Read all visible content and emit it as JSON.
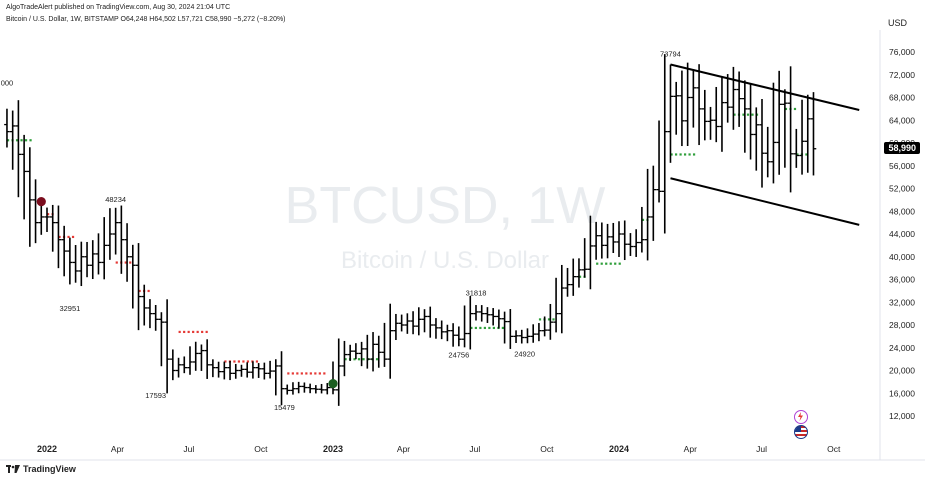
{
  "header": {
    "publisher_line": "AlgoTradeAlert published on TradingView.com, Aug 30, 2024 21:04 UTC",
    "symbol_line": "Bitcoin / U.S. Dollar, 1W, BITSTAMP  O64,248  H64,502  L57,721  C58,990  −5,272 (−8.20%)",
    "currency": "USD"
  },
  "watermark": {
    "symbol": "BTCUSD, 1W",
    "name": "Bitcoin / U.S. Dollar"
  },
  "logo": {
    "text": "TradingView"
  },
  "colors": {
    "bars": "#000000",
    "resistance_dots": "#e53935",
    "support_dots": "#2e9e3a",
    "sell_marker": "#7b0d1e",
    "buy_marker": "#1b5e20",
    "watermark": "#e9ecef"
  },
  "chart_data": {
    "type": "ohlc",
    "title": "",
    "xlabel": "",
    "ylabel": "",
    "ylim": [
      8000,
      80000
    ],
    "yticks": [
      "76,000",
      "72,000",
      "68,000",
      "64,000",
      "60,000",
      "56,000",
      "52,000",
      "48,000",
      "44,000",
      "40,000",
      "36,000",
      "32,000",
      "28,000",
      "24,000",
      "20,000",
      "16,000",
      "12,000"
    ],
    "xticks": [
      {
        "label": "2022",
        "t": 0.0,
        "bold": true
      },
      {
        "label": "Apr",
        "t": 0.2466
      },
      {
        "label": "Jul",
        "t": 0.4959
      },
      {
        "label": "Oct",
        "t": 0.7479
      },
      {
        "label": "2023",
        "t": 1.0,
        "bold": true
      },
      {
        "label": "Apr",
        "t": 1.2466
      },
      {
        "label": "Jul",
        "t": 1.4959
      },
      {
        "label": "Oct",
        "t": 1.7479
      },
      {
        "label": "2024",
        "t": 2.0,
        "bold": true
      },
      {
        "label": "Apr",
        "t": 2.2493
      },
      {
        "label": "Jul",
        "t": 2.4986
      },
      {
        "label": "Oct",
        "t": 2.7507
      }
    ],
    "last_price": "58,990",
    "last_value": 58990,
    "price_points": [
      [
        -0.14,
        62000
      ],
      [
        -0.12,
        63000
      ],
      [
        -0.1,
        58000
      ],
      [
        -0.08,
        55000
      ],
      [
        -0.06,
        50000
      ],
      [
        -0.04,
        46000
      ],
      [
        -0.02,
        47000
      ],
      [
        0.0,
        47000
      ],
      [
        0.02,
        46000
      ],
      [
        0.04,
        43000
      ],
      [
        0.06,
        41000
      ],
      [
        0.08,
        39000
      ],
      [
        0.1,
        37500
      ],
      [
        0.12,
        40000
      ],
      [
        0.14,
        38500
      ],
      [
        0.16,
        40500
      ],
      [
        0.18,
        39000
      ],
      [
        0.2,
        42000
      ],
      [
        0.22,
        44000
      ],
      [
        0.24,
        46000
      ],
      [
        0.26,
        43000
      ],
      [
        0.28,
        40000
      ],
      [
        0.3,
        38500
      ],
      [
        0.32,
        33000
      ],
      [
        0.34,
        31000
      ],
      [
        0.36,
        30000
      ],
      [
        0.38,
        29000
      ],
      [
        0.4,
        28500
      ],
      [
        0.42,
        22000
      ],
      [
        0.44,
        20000
      ],
      [
        0.46,
        21000
      ],
      [
        0.48,
        20500
      ],
      [
        0.5,
        21500
      ],
      [
        0.52,
        23000
      ],
      [
        0.54,
        23500
      ],
      [
        0.56,
        21000
      ],
      [
        0.58,
        20500
      ],
      [
        0.6,
        19800
      ],
      [
        0.62,
        20500
      ],
      [
        0.64,
        19500
      ],
      [
        0.66,
        20000
      ],
      [
        0.68,
        20200
      ],
      [
        0.7,
        19700
      ],
      [
        0.72,
        20500
      ],
      [
        0.74,
        20300
      ],
      [
        0.76,
        19500
      ],
      [
        0.78,
        19900
      ],
      [
        0.8,
        20800
      ],
      [
        0.82,
        16800
      ],
      [
        0.84,
        16500
      ],
      [
        0.86,
        16800
      ],
      [
        0.88,
        17200
      ],
      [
        0.9,
        17000
      ],
      [
        0.92,
        16800
      ],
      [
        0.94,
        16700
      ],
      [
        0.96,
        16600
      ],
      [
        0.98,
        17000
      ],
      [
        1.0,
        16600
      ],
      [
        1.02,
        20800
      ],
      [
        1.04,
        22800
      ],
      [
        1.06,
        23400
      ],
      [
        1.08,
        23000
      ],
      [
        1.1,
        23800
      ],
      [
        1.12,
        22000
      ],
      [
        1.14,
        24600
      ],
      [
        1.16,
        23200
      ],
      [
        1.18,
        22000
      ],
      [
        1.2,
        27000
      ],
      [
        1.22,
        28300
      ],
      [
        1.24,
        28000
      ],
      [
        1.26,
        28700
      ],
      [
        1.28,
        27800
      ],
      [
        1.3,
        29000
      ],
      [
        1.32,
        29500
      ],
      [
        1.34,
        28000
      ],
      [
        1.36,
        27500
      ],
      [
        1.38,
        26800
      ],
      [
        1.4,
        27000
      ],
      [
        1.42,
        26200
      ],
      [
        1.44,
        25500
      ],
      [
        1.46,
        26500
      ],
      [
        1.48,
        30000
      ],
      [
        1.5,
        30300
      ],
      [
        1.52,
        30000
      ],
      [
        1.54,
        29800
      ],
      [
        1.56,
        29500
      ],
      [
        1.58,
        29100
      ],
      [
        1.6,
        28600
      ],
      [
        1.62,
        26000
      ],
      [
        1.64,
        26100
      ],
      [
        1.66,
        25800
      ],
      [
        1.68,
        26000
      ],
      [
        1.7,
        26400
      ],
      [
        1.72,
        27000
      ],
      [
        1.74,
        27100
      ],
      [
        1.76,
        28500
      ],
      [
        1.78,
        30000
      ],
      [
        1.8,
        34500
      ],
      [
        1.82,
        35100
      ],
      [
        1.84,
        36500
      ],
      [
        1.86,
        37700
      ],
      [
        1.88,
        37800
      ],
      [
        1.9,
        41900
      ],
      [
        1.92,
        43700
      ],
      [
        1.94,
        42000
      ],
      [
        1.96,
        43500
      ],
      [
        1.98,
        42600
      ],
      [
        2.0,
        44000
      ],
      [
        2.02,
        42200
      ],
      [
        2.04,
        41800
      ],
      [
        2.06,
        42500
      ],
      [
        2.08,
        43000
      ],
      [
        2.1,
        47000
      ],
      [
        2.12,
        51800
      ],
      [
        2.14,
        51500
      ],
      [
        2.16,
        62000
      ],
      [
        2.18,
        68200
      ],
      [
        2.2,
        68300
      ],
      [
        2.22,
        63900
      ],
      [
        2.24,
        68000
      ],
      [
        2.26,
        69700
      ],
      [
        2.28,
        66000
      ],
      [
        2.3,
        63800
      ],
      [
        2.32,
        64000
      ],
      [
        2.34,
        62900
      ],
      [
        2.36,
        67100
      ],
      [
        2.38,
        66300
      ],
      [
        2.4,
        69400
      ],
      [
        2.42,
        67800
      ],
      [
        2.44,
        66000
      ],
      [
        2.46,
        61500
      ],
      [
        2.48,
        63200
      ],
      [
        2.5,
        58200
      ],
      [
        2.52,
        56700
      ],
      [
        2.54,
        60100
      ],
      [
        2.56,
        66800
      ],
      [
        2.58,
        67000
      ],
      [
        2.6,
        58100
      ],
      [
        2.62,
        57800
      ],
      [
        2.64,
        60300
      ],
      [
        2.66,
        64250
      ],
      [
        2.68,
        58990
      ]
    ],
    "annotations": [
      {
        "text": "48234",
        "t": 0.24,
        "v": 48234,
        "pos": "above"
      },
      {
        "text": "32951",
        "t": 0.08,
        "v": 32951,
        "pos": "below"
      },
      {
        "text": "17593",
        "t": 0.38,
        "v": 17593,
        "pos": "below"
      },
      {
        "text": "15479",
        "t": 0.83,
        "v": 15479,
        "pos": "below"
      },
      {
        "text": "31818",
        "t": 1.5,
        "v": 31818,
        "pos": "above"
      },
      {
        "text": "24756",
        "t": 1.44,
        "v": 24756,
        "pos": "below"
      },
      {
        "text": "24920",
        "t": 1.67,
        "v": 24920,
        "pos": "below"
      },
      {
        "text": "73794",
        "t": 2.18,
        "v": 73794,
        "pos": "above"
      },
      {
        "text": "000",
        "t": -0.14,
        "v": 68700,
        "pos": "above"
      }
    ],
    "resistance_levels": [
      {
        "t0": 0.0,
        "t1": 0.02,
        "v": 47500
      },
      {
        "t0": 0.04,
        "t1": 0.1,
        "v": 43500
      },
      {
        "t0": 0.24,
        "t1": 0.3,
        "v": 39000
      },
      {
        "t0": 0.32,
        "t1": 0.36,
        "v": 34000
      },
      {
        "t0": 0.46,
        "t1": 0.56,
        "v": 26800
      },
      {
        "t0": 0.62,
        "t1": 0.74,
        "v": 21600
      },
      {
        "t0": 0.84,
        "t1": 0.97,
        "v": 19500
      }
    ],
    "support_levels": [
      {
        "t0": -0.14,
        "t1": -0.05,
        "v": 60500
      },
      {
        "t0": 1.04,
        "t1": 1.16,
        "v": 22000
      },
      {
        "t0": 1.48,
        "t1": 1.6,
        "v": 27500
      },
      {
        "t0": 1.72,
        "t1": 1.78,
        "v": 29000
      },
      {
        "t0": 1.86,
        "t1": 1.88,
        "v": 36500
      },
      {
        "t0": 1.92,
        "t1": 2.0,
        "v": 38800
      },
      {
        "t0": 2.08,
        "t1": 2.1,
        "v": 46500
      },
      {
        "t0": 2.18,
        "t1": 2.26,
        "v": 58000
      },
      {
        "t0": 2.4,
        "t1": 2.48,
        "v": 65000
      },
      {
        "t0": 2.58,
        "t1": 2.62,
        "v": 66000
      },
      {
        "t0": 2.62,
        "t1": 2.66,
        "v": 58000
      }
    ],
    "channel": {
      "upper": [
        {
          "t": 2.18,
          "v": 73800
        },
        {
          "t": 2.84,
          "v": 65800
        }
      ],
      "lower": [
        {
          "t": 2.18,
          "v": 53800
        },
        {
          "t": 2.84,
          "v": 45600
        }
      ]
    },
    "markers": [
      {
        "kind": "sell",
        "t": -0.02,
        "v": 49700
      },
      {
        "kind": "buy",
        "t": 1.0,
        "v": 17700
      }
    ]
  }
}
